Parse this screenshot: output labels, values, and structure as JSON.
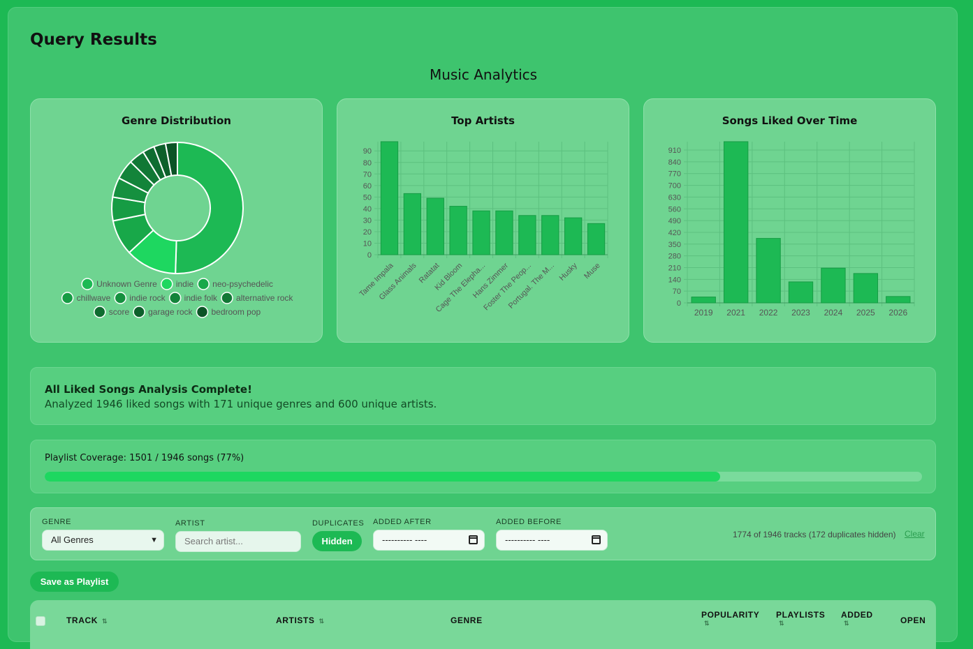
{
  "header": {
    "title": "Query Results",
    "subtitle": "Music Analytics"
  },
  "colors": {
    "bar": "#1db954",
    "donut": [
      "#1db954",
      "#1ed760",
      "#18a849",
      "#169c44",
      "#15903f",
      "#13843a",
      "#117835",
      "#0f6c30",
      "#0d602b",
      "#0b5426",
      "#094821"
    ]
  },
  "charts": {
    "genre": {
      "title": "Genre Distribution"
    },
    "artists": {
      "title": "Top Artists"
    },
    "time": {
      "title": "Songs Liked Over Time"
    }
  },
  "chart_data": [
    {
      "type": "pie",
      "title": "Genre Distribution",
      "categories": [
        "Unknown Genre",
        "indie",
        "neo-psychedelic",
        "chillwave",
        "indie rock",
        "indie folk",
        "alternative rock",
        "score",
        "garage rock",
        "bedroom pop"
      ],
      "values": [
        52,
        13,
        9,
        6,
        5,
        5,
        4,
        3,
        3,
        3
      ],
      "legend": "bottom"
    },
    {
      "type": "bar",
      "title": "Top Artists",
      "categories": [
        "Tame Impala",
        "Glass Animals",
        "Ratatat",
        "Kid Bloom",
        "Cage The Elepha...",
        "Hans Zimmer",
        "Foster The Peop...",
        "Portugal. The M...",
        "Husky",
        "Muse"
      ],
      "values": [
        98,
        53,
        49,
        42,
        38,
        38,
        34,
        34,
        32,
        27
      ],
      "yticks": [
        0,
        10,
        20,
        30,
        40,
        50,
        60,
        70,
        80,
        90
      ],
      "ylim": [
        0,
        98
      ],
      "grid": true
    },
    {
      "type": "bar",
      "title": "Songs Liked Over Time",
      "categories": [
        "2019",
        "2021",
        "2022",
        "2023",
        "2024",
        "2025",
        "2026"
      ],
      "values": [
        35,
        960,
        384,
        125,
        207,
        175,
        38
      ],
      "yticks": [
        0,
        70,
        140,
        210,
        280,
        350,
        420,
        490,
        560,
        630,
        700,
        770,
        840,
        910
      ],
      "ylim": [
        0,
        960
      ],
      "grid": true
    }
  ],
  "summary": {
    "title": "All Liked Songs Analysis Complete!",
    "text": "Analyzed 1946 liked songs with 171 unique genres and 600 unique artists."
  },
  "coverage": {
    "text": "Playlist Coverage: 1501 / 1946 songs (77%)",
    "fraction": 0.77
  },
  "filters": {
    "genre_label": "GENRE",
    "genre_value": "All Genres",
    "artist_label": "ARTIST",
    "artist_placeholder": "Search artist...",
    "duplicates_label": "DUPLICATES",
    "duplicates_value": "Hidden",
    "after_label": "ADDED AFTER",
    "after_value": "---------- ----",
    "before_label": "ADDED BEFORE",
    "before_value": "---------- ----",
    "count_text": "1774 of 1946 tracks (172 duplicates hidden)",
    "clear_label": "Clear"
  },
  "save_button": "Save as Playlist",
  "table": {
    "columns": {
      "track": "TRACK",
      "artists": "ARTISTS",
      "genre": "GENRE",
      "popularity": "POPULARITY",
      "playlists": "PLAYLISTS",
      "added": "ADDED",
      "open": "OPEN"
    },
    "sort_glyph": "⇅"
  }
}
